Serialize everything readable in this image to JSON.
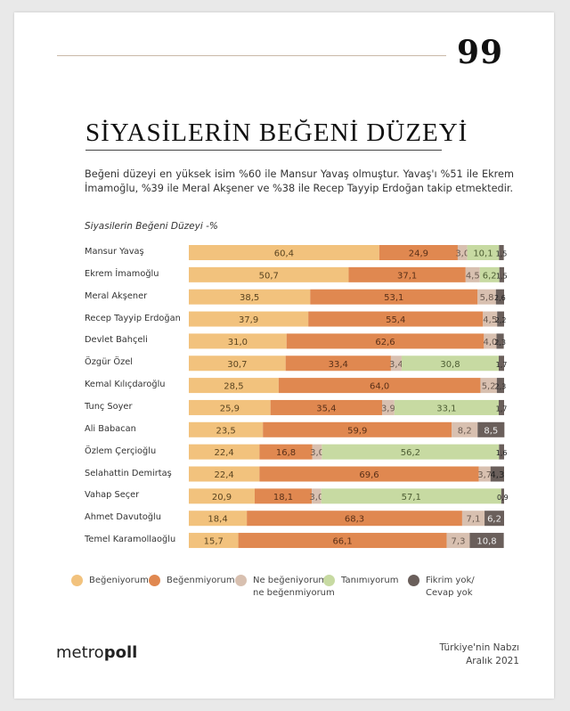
{
  "page_number": "99",
  "title": "SİYASİLERİN BEĞENİ DÜZEYİ",
  "description": "Beğeni düzeyi en yüksek isim %60 ile Mansur Yavaş olmuştur. Yavaş'ı %51 ile Ekrem İmamoğlu, %39 ile Meral Akşener ve %38 ile Recep Tayyip Erdoğan takip etmektedir.",
  "footer": {
    "logo_light": "metro",
    "logo_bold": "poll",
    "source_line1": "Türkiye'nin Nabzı",
    "source_line2": "Aralık 2021"
  },
  "chart_data": {
    "type": "bar",
    "orientation": "horizontal",
    "stacked": true,
    "title": "Siyasilerin Beğeni Düzeyi -%",
    "xlim": [
      0,
      100
    ],
    "grid": false,
    "legend_position": "bottom",
    "categories": [
      "Mansur Yavaş",
      "Ekrem İmamoğlu",
      "Meral Akşener",
      "Recep Tayyip Erdoğan",
      "Devlet Bahçeli",
      "Özgür Özel",
      "Kemal Kılıçdaroğlu",
      "Tunç Soyer",
      "Ali Babacan",
      "Özlem Çerçioğlu",
      "Selahattin Demirtaş",
      "Vahap Seçer",
      "Ahmet Davutoğlu",
      "Temel Karamollaoğlu"
    ],
    "series": [
      {
        "name": "Beğeniyorum",
        "color": "#f2c27d",
        "values": [
          60.4,
          50.7,
          38.5,
          37.9,
          31.0,
          30.7,
          28.5,
          25.9,
          23.5,
          22.4,
          22.4,
          20.9,
          18.4,
          15.7
        ]
      },
      {
        "name": "Beğenmiyorum",
        "color": "#e08850",
        "values": [
          24.9,
          37.1,
          53.1,
          55.4,
          62.6,
          33.4,
          64.0,
          35.4,
          59.9,
          16.8,
          69.6,
          18.1,
          68.3,
          66.1
        ]
      },
      {
        "name": "Ne beğeniyorum ne beğenmiyorum",
        "color": "#d8c0b0",
        "values": [
          3.0,
          4.5,
          5.8,
          4.5,
          4.0,
          3.4,
          5.2,
          3.9,
          8.2,
          3.0,
          3.7,
          3.0,
          7.1,
          7.3
        ]
      },
      {
        "name": "Tanımıyorum",
        "color": "#c7daa2",
        "values": [
          10.1,
          6.2,
          0,
          0,
          0,
          30.8,
          0,
          33.1,
          0,
          56.2,
          0,
          57.1,
          0,
          0
        ]
      },
      {
        "name": "Fikrim yok/ Cevap yok",
        "color": "#6a5f5b",
        "values": [
          1.5,
          1.5,
          2.6,
          2.2,
          2.3,
          1.7,
          2.3,
          1.7,
          8.5,
          1.6,
          4.3,
          0.9,
          6.2,
          10.8
        ]
      }
    ],
    "legend": [
      {
        "line1": "Beğeniyorum",
        "line2": ""
      },
      {
        "line1": "Beğenmiyorum",
        "line2": ""
      },
      {
        "line1": "Ne beğeniyorum",
        "line2": "ne beğenmiyorum"
      },
      {
        "line1": "Tanımıyorum",
        "line2": ""
      },
      {
        "line1": "Fikrim yok/",
        "line2": "Cevap yok"
      }
    ]
  }
}
